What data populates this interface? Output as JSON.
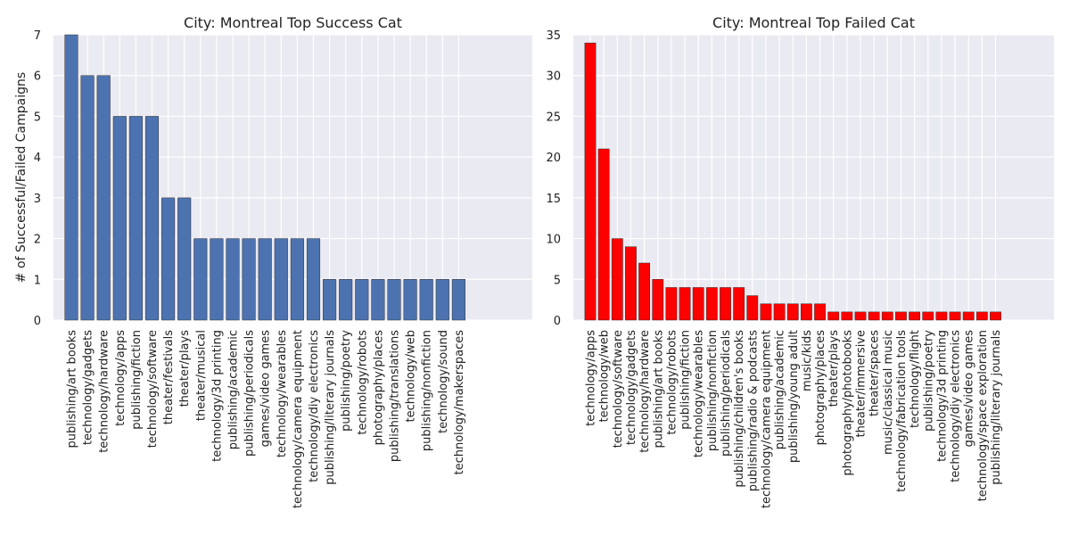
{
  "chart_data": [
    {
      "type": "bar",
      "title": "City: Montreal Top Success Cat",
      "ylabel": "# of Successful/Failed Campaigns",
      "xlabel": "",
      "ylim": [
        0,
        7
      ],
      "yticks": [
        0,
        1,
        2,
        3,
        4,
        5,
        6,
        7
      ],
      "bar_color": "#4c72b0",
      "grid": true,
      "categories": [
        "publishing/art books",
        "technology/gadgets",
        "technology/hardware",
        "technology/apps",
        "publishing/fiction",
        "technology/software",
        "theater/festivals",
        "theater/plays",
        "theater/musical",
        "technology/3d printing",
        "publishing/academic",
        "publishing/periodicals",
        "games/video games",
        "technology/wearables",
        "technology/camera equipment",
        "technology/diy electronics",
        "publishing/literary journals",
        "publishing/poetry",
        "technology/robots",
        "photography/places",
        "publishing/translations",
        "technology/web",
        "publishing/nonfiction",
        "technology/sound",
        "technology/makerspaces"
      ],
      "values": [
        7,
        6,
        6,
        5,
        5,
        5,
        3,
        3,
        2,
        2,
        2,
        2,
        2,
        2,
        2,
        2,
        1,
        1,
        1,
        1,
        1,
        1,
        1,
        1,
        1
      ]
    },
    {
      "type": "bar",
      "title": "City: Montreal Top Failed Cat",
      "ylabel": "",
      "xlabel": "",
      "ylim": [
        0,
        35
      ],
      "yticks": [
        0,
        5,
        10,
        15,
        20,
        25,
        30,
        35
      ],
      "bar_color": "#ff0000",
      "grid": true,
      "categories": [
        "technology/apps",
        "technology/web",
        "technology/software",
        "technology/gadgets",
        "technology/hardware",
        "publishing/art books",
        "technology/robots",
        "publishing/fiction",
        "technology/wearables",
        "publishing/nonfiction",
        "publishing/periodicals",
        "publishing/children's books",
        "publishing/radio & podcasts",
        "technology/camera equipment",
        "publishing/academic",
        "publishing/young adult",
        "music/kids",
        "photography/places",
        "theater/plays",
        "photography/photobooks",
        "theater/immersive",
        "theater/spaces",
        "music/classical music",
        "technology/fabrication tools",
        "technology/flight",
        "publishing/poetry",
        "technology/3d printing",
        "technology/diy electronics",
        "games/video games",
        "technology/space exploration",
        "publishing/literary journals"
      ],
      "values": [
        34,
        21,
        10,
        9,
        7,
        5,
        4,
        4,
        4,
        4,
        4,
        4,
        3,
        2,
        2,
        2,
        2,
        2,
        1,
        1,
        1,
        1,
        1,
        1,
        1,
        1,
        1,
        1,
        1,
        1,
        1
      ]
    }
  ]
}
